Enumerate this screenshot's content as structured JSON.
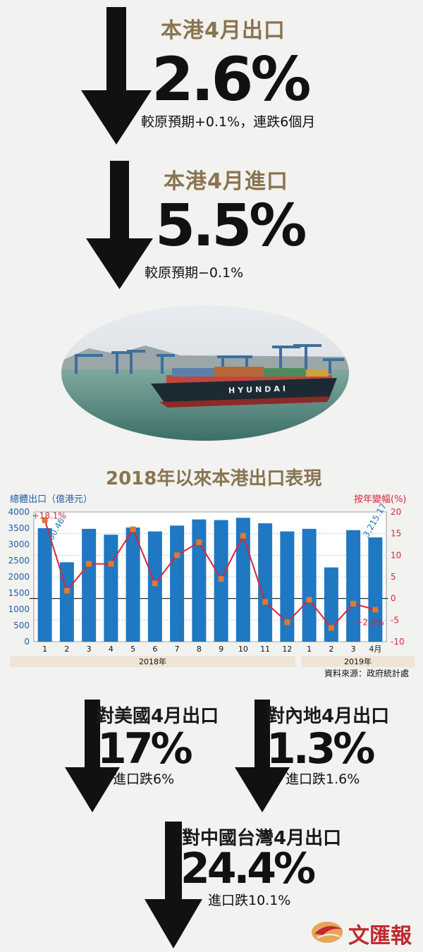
{
  "exports": {
    "title": "本港4月出口",
    "value": "2.6%",
    "note": "較原預期+0.1%，連跌6個月"
  },
  "imports": {
    "title": "本港4月進口",
    "value": "5.5%",
    "note": "較原預期−0.1%"
  },
  "ship": {
    "hull_text": "HYUNDAI"
  },
  "chart_data": {
    "type": "bar",
    "title": "2018年以來本港出口表現",
    "ylabel": "總體出口（億港元）",
    "y2label": "按年變幅(%)",
    "x_labels": [
      "1",
      "2",
      "3",
      "4",
      "5",
      "6",
      "7",
      "8",
      "9",
      "10",
      "11",
      "12",
      "1",
      "2",
      "3",
      "4月"
    ],
    "year_groups": [
      {
        "label": "2018年",
        "count": 12
      },
      {
        "label": "2019年",
        "count": 4
      }
    ],
    "ylim": [
      0,
      4000
    ],
    "y_ticks": [
      0,
      500,
      1000,
      1500,
      2000,
      2500,
      3000,
      3500,
      4000
    ],
    "y2lim": [
      -10,
      20
    ],
    "y2_ticks": [
      -10,
      -5,
      0,
      5,
      10,
      15,
      20
    ],
    "grid": true,
    "series": [
      {
        "type": "bar",
        "axis": "left",
        "color": "#1f78c1",
        "values": [
          3500,
          2450,
          3480,
          3300,
          3520,
          3400,
          3580,
          3770,
          3750,
          3820,
          3650,
          3400,
          3480,
          2290,
          3440,
          3215
        ]
      },
      {
        "type": "line",
        "axis": "right",
        "color": "#d8263a",
        "marker_color": "#e8762b",
        "values": [
          18.1,
          1.8,
          8.0,
          8.0,
          16.0,
          3.5,
          10.0,
          13.0,
          4.5,
          14.5,
          -0.8,
          -5.5,
          -0.3,
          -6.8,
          -1.2,
          -2.6
        ]
      }
    ],
    "annotations": [
      {
        "text": "+18.1%",
        "index": 0,
        "color": "#d8263a"
      },
      {
        "text": "3,500.46",
        "index": 0,
        "color": "#1f78c1"
      },
      {
        "text": "3,215.17",
        "index": 15,
        "color": "#1f78c1"
      },
      {
        "text": "−2.6%",
        "index": 15,
        "color": "#d8263a"
      }
    ],
    "source": "資料來源：政府統計處"
  },
  "usa": {
    "title": "對美國4月出口",
    "value": "17%",
    "note": "進口跌6%"
  },
  "mainland": {
    "title": "對內地4月出口",
    "value": "1.3%",
    "note": "進口跌1.6%"
  },
  "taiwan": {
    "title": "對中國台灣4月出口",
    "value": "24.4%",
    "note": "進口跌10.1%"
  },
  "logo": {
    "text": "文匯報"
  }
}
